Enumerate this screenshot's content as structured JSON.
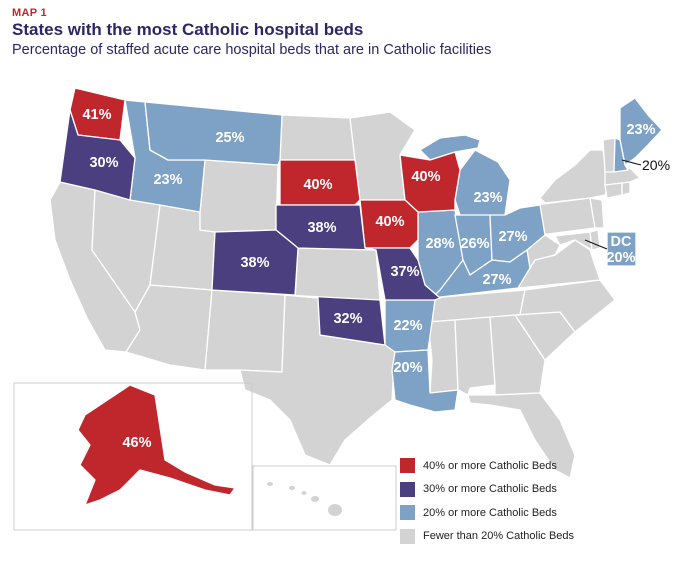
{
  "header": {
    "map_label": "MAP 1",
    "title": "States with the most Catholic hospital beds",
    "subtitle": "Percentage of staffed acute care hospital beds that are in Catholic facilities"
  },
  "colors": {
    "red": "#c0272d",
    "purple": "#4b3f7f",
    "blue": "#7ea1c6",
    "gray": "#d3d3d3",
    "border": "#ffffff"
  },
  "states": {
    "WA": "41%",
    "OR": "30%",
    "ID": "23%",
    "MT": "25%",
    "SD": "40%",
    "WI": "40%",
    "CO": "38%",
    "NE": "38%",
    "IA": "40%",
    "MO": "37%",
    "IL": "28%",
    "IN": "26%",
    "OH": "27%",
    "KY": "27%",
    "MI": "23%",
    "OK": "32%",
    "AR": "22%",
    "LA": "20%",
    "ME": "23%",
    "NH": "20%",
    "AK": "46%"
  },
  "dc": {
    "name": "DC",
    "value": "20%"
  },
  "legend": [
    {
      "label": "40% or more Catholic Beds",
      "color": "#c0272d"
    },
    {
      "label": "30% or more Catholic Beds",
      "color": "#4b3f7f"
    },
    {
      "label": "20% or more Catholic Beds",
      "color": "#7ea1c6"
    },
    {
      "label": "Fewer than 20% Catholic Beds",
      "color": "#d3d3d3"
    }
  ]
}
